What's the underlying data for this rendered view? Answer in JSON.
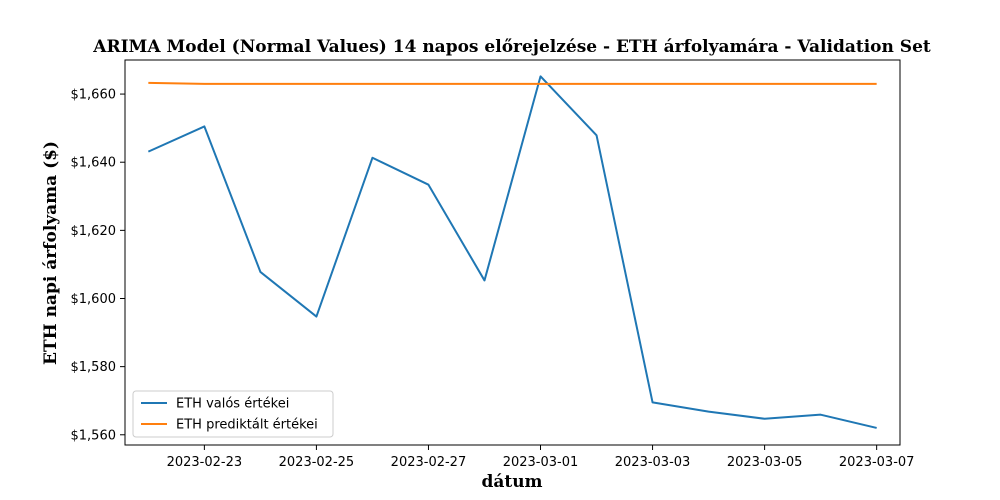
{
  "chart_data": {
    "type": "line",
    "title": "ARIMA Model (Normal Values) 14 napos előrejelzése - ETH árfolyamára - Validation Set",
    "xlabel": "dátum",
    "ylabel": "ETH napi árfolyama ($)",
    "x": [
      "2023-02-22",
      "2023-02-23",
      "2023-02-24",
      "2023-02-25",
      "2023-02-26",
      "2023-02-27",
      "2023-02-28",
      "2023-03-01",
      "2023-03-02",
      "2023-03-03",
      "2023-03-04",
      "2023-03-05",
      "2023-03-06",
      "2023-03-07"
    ],
    "x_tick_labels": [
      "2023-02-23",
      "2023-02-25",
      "2023-02-27",
      "2023-03-01",
      "2023-03-03",
      "2023-03-05",
      "2023-03-07"
    ],
    "y_tick_values": [
      1560,
      1580,
      1600,
      1620,
      1640,
      1660
    ],
    "y_tick_labels": [
      "$1,560",
      "$1,580",
      "$1,600",
      "$1,620",
      "$1,640",
      "$1,660"
    ],
    "ylim": [
      1557,
      1670
    ],
    "xlim": [
      "2023-02-21T14:00",
      "2023-03-07T10:00"
    ],
    "grid": false,
    "legend_position": "lower-left",
    "series": [
      {
        "name": "ETH valós értékei",
        "color": "#1f77b4",
        "values": [
          1643.1,
          1650.5,
          1607.8,
          1594.7,
          1641.3,
          1633.4,
          1605.3,
          1665.2,
          1647.9,
          1569.5,
          1566.8,
          1564.7,
          1565.9,
          1562.0
        ]
      },
      {
        "name": "ETH prediktált értékei",
        "color": "#ff7f0e",
        "values": [
          1663.3,
          1663.0,
          1663.0,
          1663.0,
          1663.0,
          1663.0,
          1663.0,
          1663.0,
          1663.0,
          1663.0,
          1663.0,
          1663.0,
          1663.0,
          1663.0
        ]
      }
    ]
  }
}
